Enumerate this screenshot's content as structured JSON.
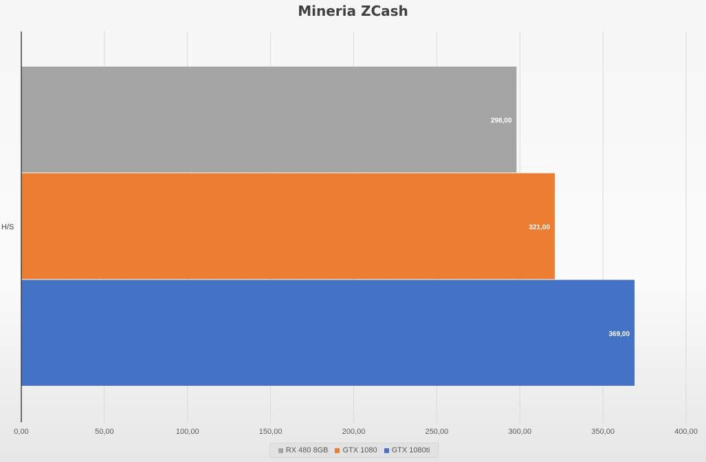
{
  "chart_data": {
    "type": "bar",
    "orientation": "horizontal",
    "title": "Mineria ZCash",
    "categories": [
      "H/S"
    ],
    "series": [
      {
        "name": "RX 480 8GB",
        "values": [
          298
        ],
        "label": "298,00",
        "color": "#a5a5a5"
      },
      {
        "name": "GTX 1080",
        "values": [
          321
        ],
        "label": "321,00",
        "color": "#ed7d31"
      },
      {
        "name": "GTX 1080ti",
        "values": [
          369
        ],
        "label": "369,00",
        "color": "#4472c4"
      }
    ],
    "xlim": [
      0,
      400
    ],
    "xticks": [
      "0,00",
      "50,00",
      "100,00",
      "150,00",
      "200,00",
      "250,00",
      "300,00",
      "350,00",
      "400,00"
    ],
    "grid": true,
    "legend_position": "bottom"
  }
}
